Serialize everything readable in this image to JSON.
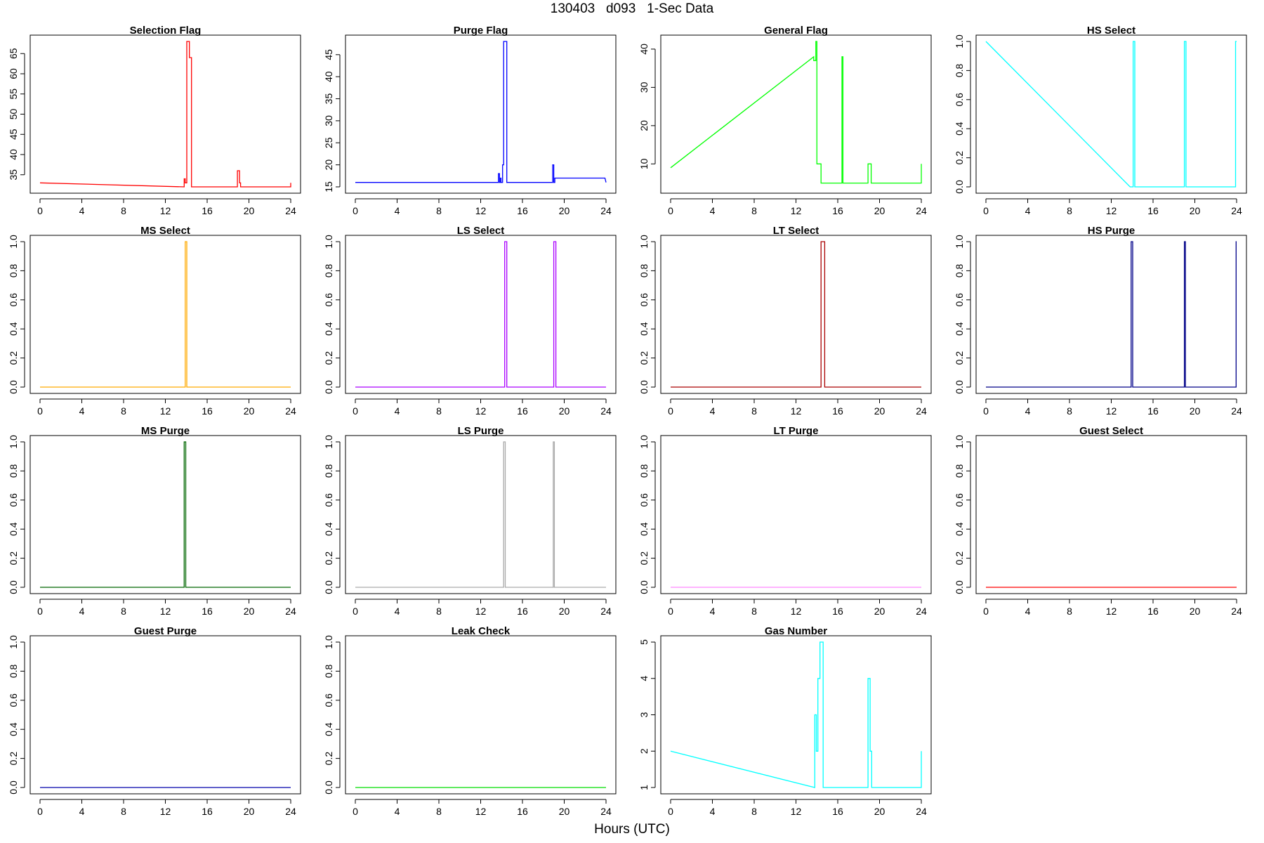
{
  "title": "130403   d093   1-Sec Data",
  "xlabel": "Hours (UTC)",
  "chart_data": [
    {
      "type": "line",
      "title": "Selection Flag",
      "color": "#ff0000",
      "xlim": [
        0,
        24
      ],
      "ylim": [
        32,
        68
      ],
      "x_ticks": [
        0,
        4,
        8,
        12,
        16,
        20,
        24
      ],
      "y_ticks": [
        35,
        40,
        45,
        50,
        55,
        60,
        65
      ],
      "x": [
        0,
        13.8,
        13.8,
        13.9,
        13.9,
        14.05,
        14.05,
        14.3,
        14.3,
        14.5,
        14.5,
        18.9,
        18.9,
        19.1,
        19.1,
        19.2,
        19.2,
        24,
        24
      ],
      "y": [
        33,
        32,
        34,
        34,
        33,
        33,
        68,
        68,
        64,
        64,
        32,
        32,
        36,
        36,
        33,
        33,
        32,
        32,
        33
      ]
    },
    {
      "type": "line",
      "title": "Purge Flag",
      "color": "#0000ff",
      "xlim": [
        0,
        24
      ],
      "ylim": [
        15,
        48
      ],
      "x_ticks": [
        0,
        4,
        8,
        12,
        16,
        20,
        24
      ],
      "y_ticks": [
        15,
        20,
        25,
        30,
        35,
        40,
        45
      ],
      "x": [
        0,
        13.7,
        13.7,
        13.8,
        13.8,
        13.9,
        13.9,
        13.95,
        13.95,
        14.1,
        14.1,
        14.2,
        14.2,
        14.5,
        14.5,
        18.9,
        18.9,
        19.0,
        19.0,
        19.1,
        19.1,
        23.9,
        23.9,
        24
      ],
      "y": [
        16,
        16,
        18,
        18,
        16,
        16,
        17,
        17,
        16,
        16,
        20,
        20,
        48,
        48,
        16,
        16,
        20,
        20,
        16,
        16,
        17,
        17,
        17,
        16
      ]
    },
    {
      "type": "line",
      "title": "General Flag",
      "color": "#00ff00",
      "xlim": [
        0,
        24
      ],
      "ylim": [
        4,
        42
      ],
      "x_ticks": [
        0,
        4,
        8,
        12,
        16,
        20,
        24
      ],
      "y_ticks": [
        10,
        20,
        30,
        40
      ],
      "x": [
        0,
        13.7,
        13.7,
        13.9,
        13.9,
        14.0,
        14.0,
        14.4,
        14.4,
        16.4,
        16.4,
        16.5,
        16.5,
        18.9,
        18.9,
        19.2,
        19.2,
        24,
        24
      ],
      "y": [
        9,
        38,
        37,
        37,
        42,
        42,
        10,
        10,
        5,
        5,
        38,
        38,
        5,
        5,
        10,
        10,
        5,
        5,
        10
      ]
    },
    {
      "type": "line",
      "title": "HS Select",
      "color": "#00ffff",
      "xlim": [
        0,
        24
      ],
      "ylim": [
        0,
        1
      ],
      "x_ticks": [
        0,
        4,
        8,
        12,
        16,
        20,
        24
      ],
      "y_ticks": [
        0.0,
        0.2,
        0.4,
        0.6,
        0.8,
        1.0
      ],
      "x": [
        0,
        13.8,
        14.1,
        14.1,
        14.25,
        14.25,
        19.0,
        19.0,
        19.15,
        19.15,
        23.9,
        23.9,
        24
      ],
      "y": [
        1,
        0,
        0,
        1,
        1,
        0,
        0,
        1,
        1,
        0,
        0,
        1,
        1
      ]
    },
    {
      "type": "line",
      "title": "MS Select",
      "color": "#ffaa00",
      "xlim": [
        0,
        24
      ],
      "ylim": [
        0,
        1
      ],
      "x_ticks": [
        0,
        4,
        8,
        12,
        16,
        20,
        24
      ],
      "y_ticks": [
        0.0,
        0.2,
        0.4,
        0.6,
        0.8,
        1.0
      ],
      "x": [
        0,
        13.9,
        13.9,
        14.05,
        14.05,
        24
      ],
      "y": [
        0,
        0,
        1,
        1,
        0,
        0
      ]
    },
    {
      "type": "line",
      "title": "LS Select",
      "color": "#aa00ff",
      "xlim": [
        0,
        24
      ],
      "ylim": [
        0,
        1
      ],
      "x_ticks": [
        0,
        4,
        8,
        12,
        16,
        20,
        24
      ],
      "y_ticks": [
        0.0,
        0.2,
        0.4,
        0.6,
        0.8,
        1.0
      ],
      "x": [
        0,
        14.3,
        14.3,
        14.5,
        14.5,
        19.0,
        19.0,
        19.2,
        19.2,
        24
      ],
      "y": [
        0,
        0,
        1,
        1,
        0,
        0,
        1,
        1,
        0,
        0
      ]
    },
    {
      "type": "line",
      "title": "LT Select",
      "color": "#aa0000",
      "xlim": [
        0,
        24
      ],
      "ylim": [
        0,
        1
      ],
      "x_ticks": [
        0,
        4,
        8,
        12,
        16,
        20,
        24
      ],
      "y_ticks": [
        0.0,
        0.2,
        0.4,
        0.6,
        0.8,
        1.0
      ],
      "x": [
        0,
        14.4,
        14.4,
        14.75,
        14.75,
        24
      ],
      "y": [
        0,
        0,
        1,
        1,
        0,
        0
      ]
    },
    {
      "type": "line",
      "title": "HS Purge",
      "color": "#000088",
      "xlim": [
        0,
        24
      ],
      "ylim": [
        0,
        1
      ],
      "x_ticks": [
        0,
        4,
        8,
        12,
        16,
        20,
        24
      ],
      "y_ticks": [
        0.0,
        0.2,
        0.4,
        0.6,
        0.8,
        1.0
      ],
      "x": [
        0,
        13.9,
        13.9,
        14.05,
        14.05,
        19.0,
        19.0,
        19.1,
        19.1,
        23.95,
        23.95,
        24
      ],
      "y": [
        0,
        0,
        1,
        1,
        0,
        0,
        1,
        1,
        0,
        0,
        1,
        1
      ]
    },
    {
      "type": "line",
      "title": "MS Purge",
      "color": "#006600",
      "xlim": [
        0,
        24
      ],
      "ylim": [
        0,
        1
      ],
      "x_ticks": [
        0,
        4,
        8,
        12,
        16,
        20,
        24
      ],
      "y_ticks": [
        0.0,
        0.2,
        0.4,
        0.6,
        0.8,
        1.0
      ],
      "x": [
        0,
        13.8,
        13.8,
        13.95,
        13.95,
        24
      ],
      "y": [
        0,
        0,
        1,
        1,
        0,
        0
      ]
    },
    {
      "type": "line",
      "title": "LS Purge",
      "color": "#aaaaaa",
      "xlim": [
        0,
        24
      ],
      "ylim": [
        0,
        1
      ],
      "x_ticks": [
        0,
        4,
        8,
        12,
        16,
        20,
        24
      ],
      "y_ticks": [
        0.0,
        0.2,
        0.4,
        0.6,
        0.8,
        1.0
      ],
      "x": [
        0,
        14.2,
        14.2,
        14.35,
        14.35,
        18.95,
        18.95,
        19.05,
        19.05,
        24
      ],
      "y": [
        0,
        0,
        1,
        1,
        0,
        0,
        1,
        1,
        0,
        0
      ]
    },
    {
      "type": "line",
      "title": "LT Purge",
      "color": "#ff88ff",
      "xlim": [
        0,
        24
      ],
      "ylim": [
        0,
        1
      ],
      "x_ticks": [
        0,
        4,
        8,
        12,
        16,
        20,
        24
      ],
      "y_ticks": [
        0.0,
        0.2,
        0.4,
        0.6,
        0.8,
        1.0
      ],
      "x": [
        0,
        24
      ],
      "y": [
        0,
        0
      ]
    },
    {
      "type": "line",
      "title": "Guest Select",
      "color": "#ff0000",
      "xlim": [
        0,
        24
      ],
      "ylim": [
        0,
        1
      ],
      "x_ticks": [
        0,
        4,
        8,
        12,
        16,
        20,
        24
      ],
      "y_ticks": [
        0.0,
        0.2,
        0.4,
        0.6,
        0.8,
        1.0
      ],
      "x": [
        0,
        24
      ],
      "y": [
        0,
        0
      ]
    },
    {
      "type": "line",
      "title": "Guest Purge",
      "color": "#0000aa",
      "xlim": [
        0,
        24
      ],
      "ylim": [
        0,
        1
      ],
      "x_ticks": [
        0,
        4,
        8,
        12,
        16,
        20,
        24
      ],
      "y_ticks": [
        0.0,
        0.2,
        0.4,
        0.6,
        0.8,
        1.0
      ],
      "x": [
        0,
        24
      ],
      "y": [
        0,
        0
      ]
    },
    {
      "type": "line",
      "title": "Leak Check",
      "color": "#00dd00",
      "xlim": [
        0,
        24
      ],
      "ylim": [
        0,
        1
      ],
      "x_ticks": [
        0,
        4,
        8,
        12,
        16,
        20,
        24
      ],
      "y_ticks": [
        0.0,
        0.2,
        0.4,
        0.6,
        0.8,
        1.0
      ],
      "x": [
        0,
        24
      ],
      "y": [
        0,
        0
      ]
    },
    {
      "type": "line",
      "title": "Gas Number",
      "color": "#00ffff",
      "xlim": [
        0,
        24
      ],
      "ylim": [
        1,
        5
      ],
      "x_ticks": [
        0,
        4,
        8,
        12,
        16,
        20,
        24
      ],
      "y_ticks": [
        1,
        2,
        3,
        4,
        5
      ],
      "x": [
        0,
        13.8,
        13.8,
        13.95,
        13.95,
        14.1,
        14.1,
        14.3,
        14.3,
        14.6,
        14.6,
        18.9,
        18.9,
        19.1,
        19.1,
        19.25,
        19.25,
        24,
        24
      ],
      "y": [
        2,
        1,
        3,
        3,
        2,
        2,
        4,
        4,
        5,
        5,
        1,
        1,
        4,
        4,
        2,
        2,
        1,
        1,
        2
      ]
    }
  ]
}
